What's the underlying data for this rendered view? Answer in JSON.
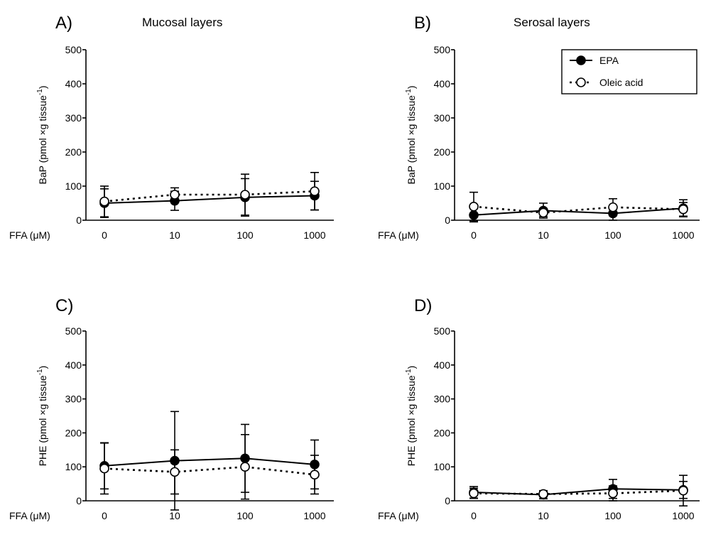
{
  "figure": {
    "x_axis_prefix": "FFA (μM)",
    "legend": {
      "placement": "top-right of panel B",
      "entries": [
        {
          "name": "EPA",
          "marker": "filled-circle",
          "line": "solid"
        },
        {
          "name": "Oleic acid",
          "marker": "open-circle",
          "line": "dotted"
        }
      ]
    },
    "colors": {
      "line": "#000000",
      "background": "#ffffff"
    }
  },
  "chart_data": [
    {
      "type": "line",
      "panel": "A)",
      "title": "Mucosal layers",
      "ylabel_main": "BaP (pmol ×g tissue",
      "ylabel_sup": "-1",
      "ylabel_end": ")",
      "categories": [
        "0",
        "10",
        "100",
        "1000"
      ],
      "ylim": [
        0,
        500
      ],
      "yticks": [
        "0",
        "100",
        "200",
        "300",
        "400",
        "500"
      ],
      "series": [
        {
          "name": "EPA",
          "values": [
            50,
            57,
            67,
            72
          ],
          "errors": [
            42,
            28,
            55,
            42
          ]
        },
        {
          "name": "Oleic acid",
          "values": [
            55,
            75,
            75,
            85
          ],
          "errors": [
            45,
            20,
            60,
            55
          ]
        }
      ]
    },
    {
      "type": "line",
      "panel": "B)",
      "title": "Serosal layers",
      "ylabel_main": "BaP (pmol ×g tissue",
      "ylabel_sup": "-1",
      "ylabel_end": ")",
      "categories": [
        "0",
        "10",
        "100",
        "1000"
      ],
      "ylim": [
        0,
        500
      ],
      "yticks": [
        "0",
        "100",
        "200",
        "300",
        "400",
        "500"
      ],
      "series": [
        {
          "name": "EPA",
          "values": [
            15,
            28,
            20,
            35
          ],
          "errors": [
            20,
            22,
            20,
            25
          ]
        },
        {
          "name": "Oleic acid",
          "values": [
            40,
            22,
            38,
            32
          ],
          "errors": [
            42,
            12,
            25,
            20
          ]
        }
      ]
    },
    {
      "type": "line",
      "panel": "C)",
      "title": "",
      "ylabel_main": "PHE (pmol ×g tissue",
      "ylabel_sup": "-1",
      "ylabel_end": ")",
      "categories": [
        "0",
        "10",
        "100",
        "1000"
      ],
      "ylim": [
        0,
        500
      ],
      "yticks": [
        "0",
        "100",
        "200",
        "300",
        "400",
        "500"
      ],
      "series": [
        {
          "name": "EPA",
          "values": [
            103,
            118,
            125,
            107
          ],
          "errors": [
            68,
            145,
            100,
            72
          ]
        },
        {
          "name": "Oleic acid",
          "values": [
            95,
            85,
            100,
            77
          ],
          "errors": [
            75,
            65,
            95,
            57
          ]
        }
      ]
    },
    {
      "type": "line",
      "panel": "D)",
      "title": "",
      "ylabel_main": "PHE (pmol ×g tissue",
      "ylabel_sup": "-1",
      "ylabel_end": ")",
      "categories": [
        "0",
        "10",
        "100",
        "1000"
      ],
      "ylim": [
        0,
        500
      ],
      "yticks": [
        "0",
        "100",
        "200",
        "300",
        "400",
        "500"
      ],
      "series": [
        {
          "name": "EPA",
          "values": [
            25,
            18,
            35,
            32
          ],
          "errors": [
            17,
            12,
            28,
            25
          ]
        },
        {
          "name": "Oleic acid",
          "values": [
            22,
            20,
            22,
            30
          ],
          "errors": [
            15,
            8,
            22,
            45
          ]
        }
      ]
    }
  ]
}
